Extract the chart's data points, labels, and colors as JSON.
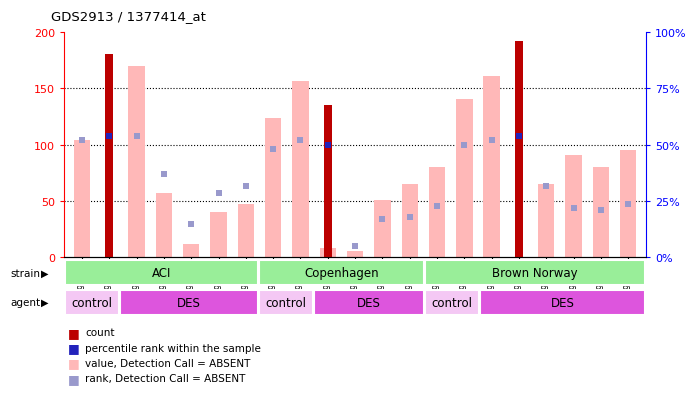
{
  "title": "GDS2913 / 1377414_at",
  "samples": [
    "GSM92200",
    "GSM92201",
    "GSM92202",
    "GSM92203",
    "GSM92204",
    "GSM92205",
    "GSM92206",
    "GSM92207",
    "GSM92208",
    "GSM92209",
    "GSM92210",
    "GSM92211",
    "GSM92212",
    "GSM92213",
    "GSM92214",
    "GSM92215",
    "GSM92216",
    "GSM92217",
    "GSM92218",
    "GSM92219",
    "GSM92220"
  ],
  "count_values": [
    null,
    181,
    null,
    null,
    null,
    null,
    null,
    null,
    null,
    135,
    null,
    null,
    null,
    null,
    null,
    null,
    192,
    null,
    null,
    null,
    null
  ],
  "rank_values": [
    null,
    108,
    null,
    null,
    null,
    null,
    null,
    null,
    null,
    100,
    null,
    null,
    null,
    null,
    null,
    null,
    108,
    null,
    null,
    null,
    null
  ],
  "absent_count": [
    104,
    null,
    170,
    57,
    12,
    40,
    47,
    124,
    157,
    8,
    5,
    51,
    65,
    80,
    141,
    161,
    null,
    65,
    91,
    80,
    95
  ],
  "absent_rank": [
    104,
    null,
    108,
    74,
    29,
    57,
    63,
    96,
    104,
    null,
    10,
    34,
    36,
    45,
    100,
    104,
    null,
    63,
    44,
    42,
    47
  ],
  "ylim": [
    0,
    200
  ],
  "yticks": [
    0,
    50,
    100,
    150,
    200
  ],
  "y2ticks": [
    0,
    25,
    50,
    75,
    100
  ],
  "y2ticklabels": [
    "0%",
    "25%",
    "50%",
    "75%",
    "100%"
  ],
  "strain_groups": [
    {
      "label": "ACI",
      "start": 0,
      "end": 7
    },
    {
      "label": "Copenhagen",
      "start": 7,
      "end": 13
    },
    {
      "label": "Brown Norway",
      "start": 13,
      "end": 21
    }
  ],
  "agent_groups": [
    {
      "label": "control",
      "start": 0,
      "end": 2,
      "color": "#f4c8f4"
    },
    {
      "label": "DES",
      "start": 2,
      "end": 7,
      "color": "#dd55dd"
    },
    {
      "label": "control",
      "start": 7,
      "end": 9,
      "color": "#f4c8f4"
    },
    {
      "label": "DES",
      "start": 9,
      "end": 13,
      "color": "#dd55dd"
    },
    {
      "label": "control",
      "start": 13,
      "end": 15,
      "color": "#f4c8f4"
    },
    {
      "label": "DES",
      "start": 15,
      "end": 21,
      "color": "#dd55dd"
    }
  ],
  "color_count": "#bb0000",
  "color_rank": "#2222bb",
  "color_absent_count": "#ffb8b8",
  "color_absent_rank": "#9999cc",
  "strain_color": "#99ee99",
  "legend_items": [
    {
      "label": "count",
      "color": "#bb0000"
    },
    {
      "label": "percentile rank within the sample",
      "color": "#2222bb"
    },
    {
      "label": "value, Detection Call = ABSENT",
      "color": "#ffb8b8"
    },
    {
      "label": "rank, Detection Call = ABSENT",
      "color": "#9999cc"
    }
  ]
}
